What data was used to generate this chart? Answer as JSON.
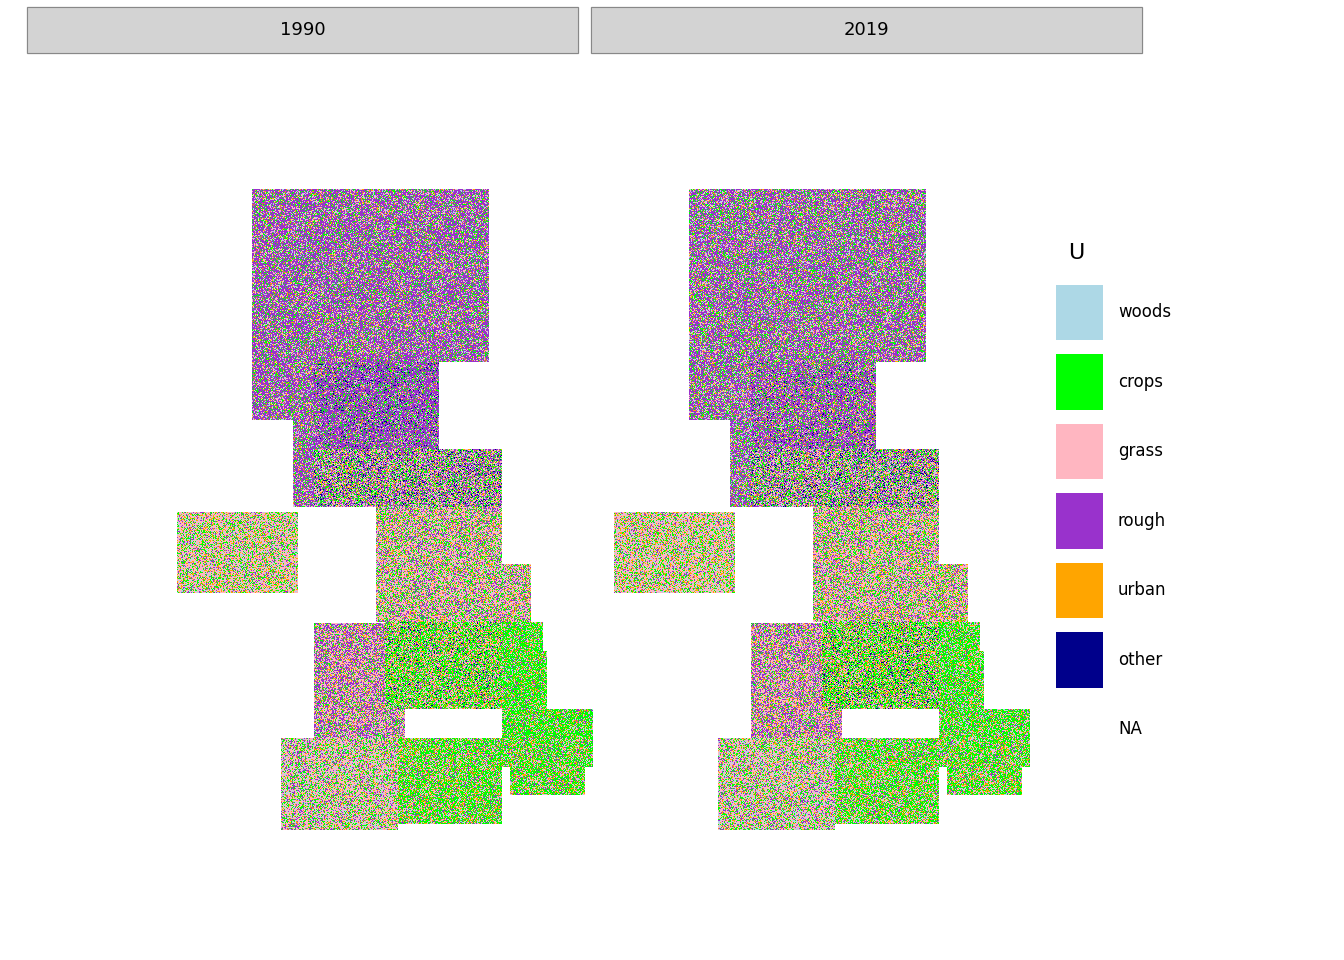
{
  "title_1990": "1990",
  "title_2019": "2019",
  "legend_title": "U",
  "legend_labels": [
    "woods",
    "crops",
    "grass",
    "rough",
    "urban",
    "other",
    "NA"
  ],
  "legend_colors": [
    "#add8e6",
    "#00ff00",
    "#ffb6c1",
    "#9932cc",
    "#ffa500",
    "#00008b",
    "#ffffff"
  ],
  "header_bg": "#d3d3d3",
  "header_text_color": "#000000",
  "background_color": "#ffffff",
  "figsize": [
    13.44,
    9.6
  ],
  "dpi": 100,
  "category_colors": {
    "woods": "#add8e6",
    "crops": "#00ff00",
    "grass": "#ffb6c1",
    "rough": "#9932cc",
    "urban": "#ffa500",
    "other": "#00008b",
    "NA": "#ffffff"
  }
}
